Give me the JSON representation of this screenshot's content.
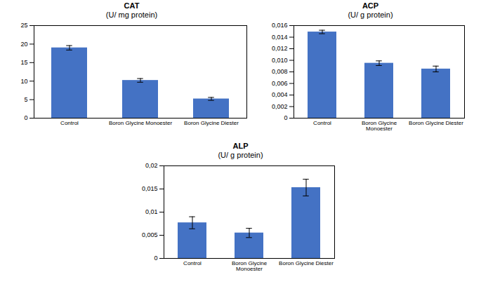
{
  "chart_data": [
    {
      "type": "bar",
      "title": "CAT",
      "subtitle": "(U/ mg protein)",
      "categories": [
        "Control",
        "Boron Glycine Monoester",
        "Boron Glycine Diester"
      ],
      "values": [
        19.0,
        10.2,
        5.2
      ],
      "errors": [
        0.6,
        0.5,
        0.4
      ],
      "ylim": [
        0,
        25
      ],
      "yticks": [
        0,
        5,
        10,
        15,
        20,
        25
      ],
      "color": "#4472C4",
      "grid": false
    },
    {
      "type": "bar",
      "title": "ACP",
      "subtitle": "(U/ g protein)",
      "categories": [
        "Control",
        "Boron Glycine\nMonoester",
        "Boron Glycine Diester"
      ],
      "values": [
        0.0149,
        0.0095,
        0.0085
      ],
      "errors": [
        0.0003,
        0.0004,
        0.0005
      ],
      "ylim": [
        0,
        0.016
      ],
      "yticks": [
        0,
        {
          "value": 0.002,
          "label": "0,002"
        },
        {
          "value": 0.004,
          "label": "0,004"
        },
        {
          "value": 0.006,
          "label": "0,006"
        },
        {
          "value": 0.008,
          "label": "0,008"
        },
        {
          "value": 0.01,
          "label": "0,010"
        },
        {
          "value": 0.012,
          "label": "0,012"
        },
        {
          "value": 0.014,
          "label": "0,014"
        },
        {
          "value": 0.016,
          "label": "0,016"
        }
      ],
      "color": "#4472C4",
      "grid": false
    },
    {
      "type": "bar",
      "title": "ALP",
      "subtitle": "(U/ g protein)",
      "categories": [
        "Control",
        "Boron Glycine\nMonoester",
        "Boron Glycine Diester"
      ],
      "values": [
        0.0077,
        0.0055,
        0.0153
      ],
      "errors": [
        0.0013,
        0.001,
        0.0018
      ],
      "ylim": [
        0,
        0.02
      ],
      "yticks": [
        0,
        {
          "value": 0.005,
          "label": "0,005"
        },
        {
          "value": 0.01,
          "label": "0,01"
        },
        {
          "value": 0.015,
          "label": "0,015"
        },
        {
          "value": 0.02,
          "label": "0,02"
        }
      ],
      "color": "#4472C4",
      "grid": false
    }
  ]
}
